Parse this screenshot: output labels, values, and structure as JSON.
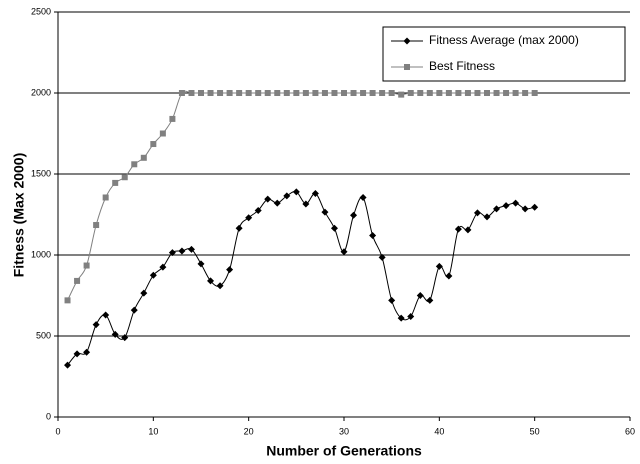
{
  "chart_data": {
    "type": "line",
    "x_label": "Number of Generations",
    "y_label": "Fitness (Max 2000)",
    "x": [
      1,
      2,
      3,
      4,
      5,
      6,
      7,
      8,
      9,
      10,
      11,
      12,
      13,
      14,
      15,
      16,
      17,
      18,
      19,
      20,
      21,
      22,
      23,
      24,
      25,
      26,
      27,
      28,
      29,
      30,
      31,
      32,
      33,
      34,
      35,
      36,
      37,
      38,
      39,
      40,
      41,
      42,
      43,
      44,
      45,
      46,
      47,
      48,
      49,
      50
    ],
    "series": [
      {
        "name": "Fitness Average (max 2000)",
        "color": "#000000",
        "marker": "diamond",
        "values": [
          320,
          390,
          400,
          570,
          630,
          510,
          490,
          660,
          765,
          875,
          925,
          1015,
          1025,
          1035,
          945,
          840,
          810,
          910,
          1165,
          1230,
          1275,
          1345,
          1320,
          1365,
          1390,
          1315,
          1380,
          1265,
          1165,
          1020,
          1245,
          1355,
          1120,
          985,
          720,
          610,
          620,
          750,
          720,
          930,
          870,
          1160,
          1155,
          1260,
          1235,
          1285,
          1305,
          1320,
          1285,
          1295
        ]
      },
      {
        "name": "Best Fitness",
        "color": "#808080",
        "marker": "square",
        "values": [
          720,
          840,
          935,
          1185,
          1355,
          1445,
          1480,
          1560,
          1600,
          1685,
          1750,
          1840,
          2000,
          2000,
          2000,
          2000,
          2000,
          2000,
          2000,
          2000,
          2000,
          2000,
          2000,
          2000,
          2000,
          2000,
          2000,
          2000,
          2000,
          2000,
          2000,
          2000,
          2000,
          2000,
          2000,
          1990,
          2000,
          2000,
          2000,
          2000,
          2000,
          2000,
          2000,
          2000,
          2000,
          2000,
          2000,
          2000,
          2000,
          2000
        ]
      }
    ],
    "xlim": [
      0,
      60
    ],
    "xticks": [
      0,
      10,
      20,
      30,
      40,
      50,
      60
    ],
    "ylim": [
      0,
      2500
    ],
    "yticks": [
      0,
      500,
      1000,
      1500,
      2000,
      2500
    ],
    "grid": true,
    "legend": "upper right"
  }
}
